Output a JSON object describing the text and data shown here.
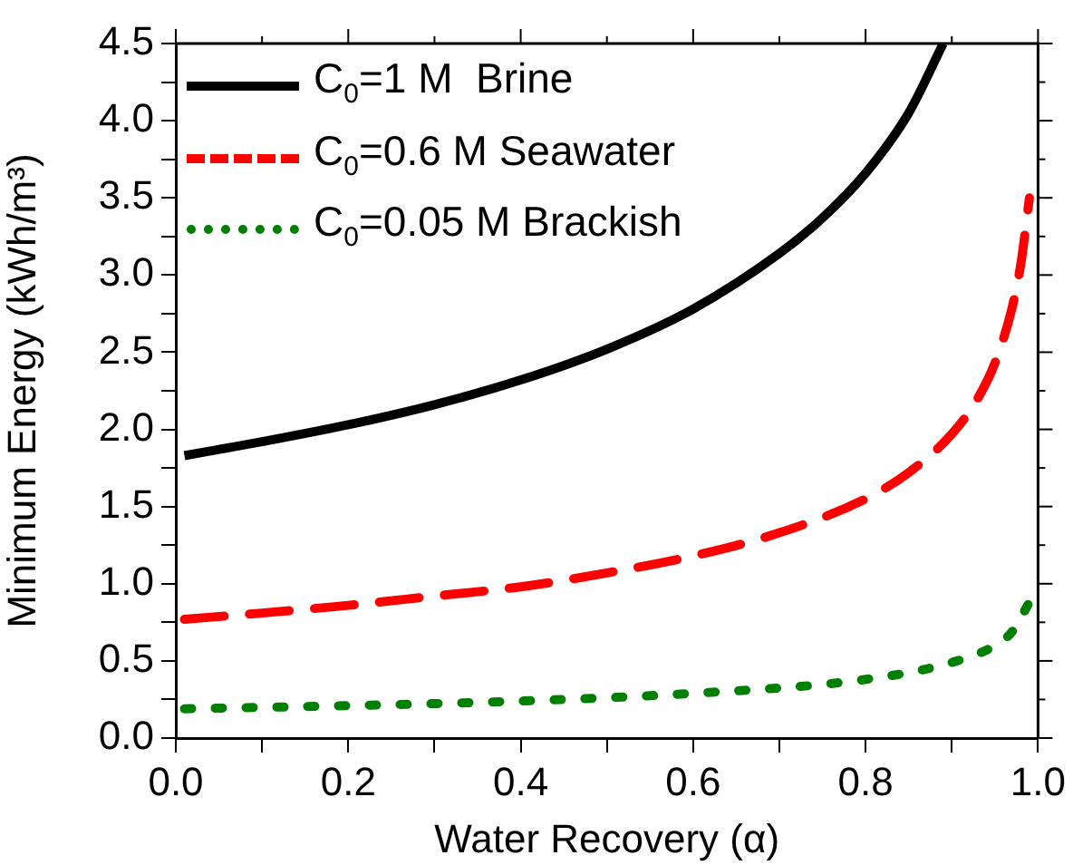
{
  "chart_data": {
    "type": "line",
    "xlabel": "Water Recovery (α)",
    "ylabel": "Minimum Energy (kWh/m³)",
    "xlim": [
      0,
      1
    ],
    "ylim": [
      0,
      4.5
    ],
    "xticks": [
      {
        "value": 0,
        "label": "0.0"
      },
      {
        "value": 0.1,
        "label": null
      },
      {
        "value": 0.2,
        "label": "0.2"
      },
      {
        "value": 0.3,
        "label": null
      },
      {
        "value": 0.4,
        "label": "0.4"
      },
      {
        "value": 0.5,
        "label": null
      },
      {
        "value": 0.6,
        "label": "0.6"
      },
      {
        "value": 0.7,
        "label": null
      },
      {
        "value": 0.8,
        "label": "0.8"
      },
      {
        "value": 0.9,
        "label": null
      },
      {
        "value": 1,
        "label": "1.0"
      }
    ],
    "yticks": [
      {
        "value": 0,
        "label": "0.0"
      },
      {
        "value": 0.25,
        "label": null
      },
      {
        "value": 0.5,
        "label": "0.5"
      },
      {
        "value": 0.75,
        "label": null
      },
      {
        "value": 1,
        "label": "1.0"
      },
      {
        "value": 1.25,
        "label": null
      },
      {
        "value": 1.5,
        "label": "1.5"
      },
      {
        "value": 1.75,
        "label": null
      },
      {
        "value": 2,
        "label": "2.0"
      },
      {
        "value": 2.25,
        "label": null
      },
      {
        "value": 2.5,
        "label": "2.5"
      },
      {
        "value": 2.75,
        "label": null
      },
      {
        "value": 3,
        "label": "3.0"
      },
      {
        "value": 3.25,
        "label": null
      },
      {
        "value": 3.5,
        "label": "3.5"
      },
      {
        "value": 3.75,
        "label": null
      },
      {
        "value": 4,
        "label": "4.0"
      },
      {
        "value": 4.25,
        "label": null
      },
      {
        "value": 4.5,
        "label": "4.5"
      }
    ],
    "grid": false,
    "legend": "top left",
    "marker": "none",
    "series": [
      {
        "name": "C$_{0}$=1 M  Brine",
        "color": "#000000",
        "line_style": "solid",
        "x": [
          0.01,
          0.1,
          0.2,
          0.3,
          0.4,
          0.5,
          0.6,
          0.7,
          0.75,
          0.8,
          0.85,
          0.89
        ],
        "values": [
          1.83,
          1.92,
          2.03,
          2.16,
          2.32,
          2.52,
          2.78,
          3.14,
          3.37,
          3.66,
          4.05,
          4.5
        ]
      },
      {
        "name": "C$_{0}$=0.6 M Seawater",
        "color": "#ff0000",
        "line_style": "dashed",
        "x": [
          0.01,
          0.1,
          0.2,
          0.3,
          0.4,
          0.5,
          0.6,
          0.7,
          0.8,
          0.85,
          0.9,
          0.93,
          0.95,
          0.97,
          0.98,
          0.99
        ],
        "values": [
          0.77,
          0.81,
          0.86,
          0.92,
          0.98,
          1.07,
          1.18,
          1.33,
          1.55,
          1.72,
          1.97,
          2.2,
          2.43,
          2.79,
          3.07,
          3.5
        ]
      },
      {
        "name": "C$_{0}$=0.05 M Brackish",
        "color": "#008000",
        "line_style": "dotted",
        "x": [
          0.01,
          0.2,
          0.4,
          0.6,
          0.8,
          0.9,
          0.95,
          0.97,
          0.99
        ],
        "values": [
          0.19,
          0.21,
          0.24,
          0.29,
          0.38,
          0.49,
          0.6,
          0.69,
          0.88
        ]
      }
    ]
  }
}
